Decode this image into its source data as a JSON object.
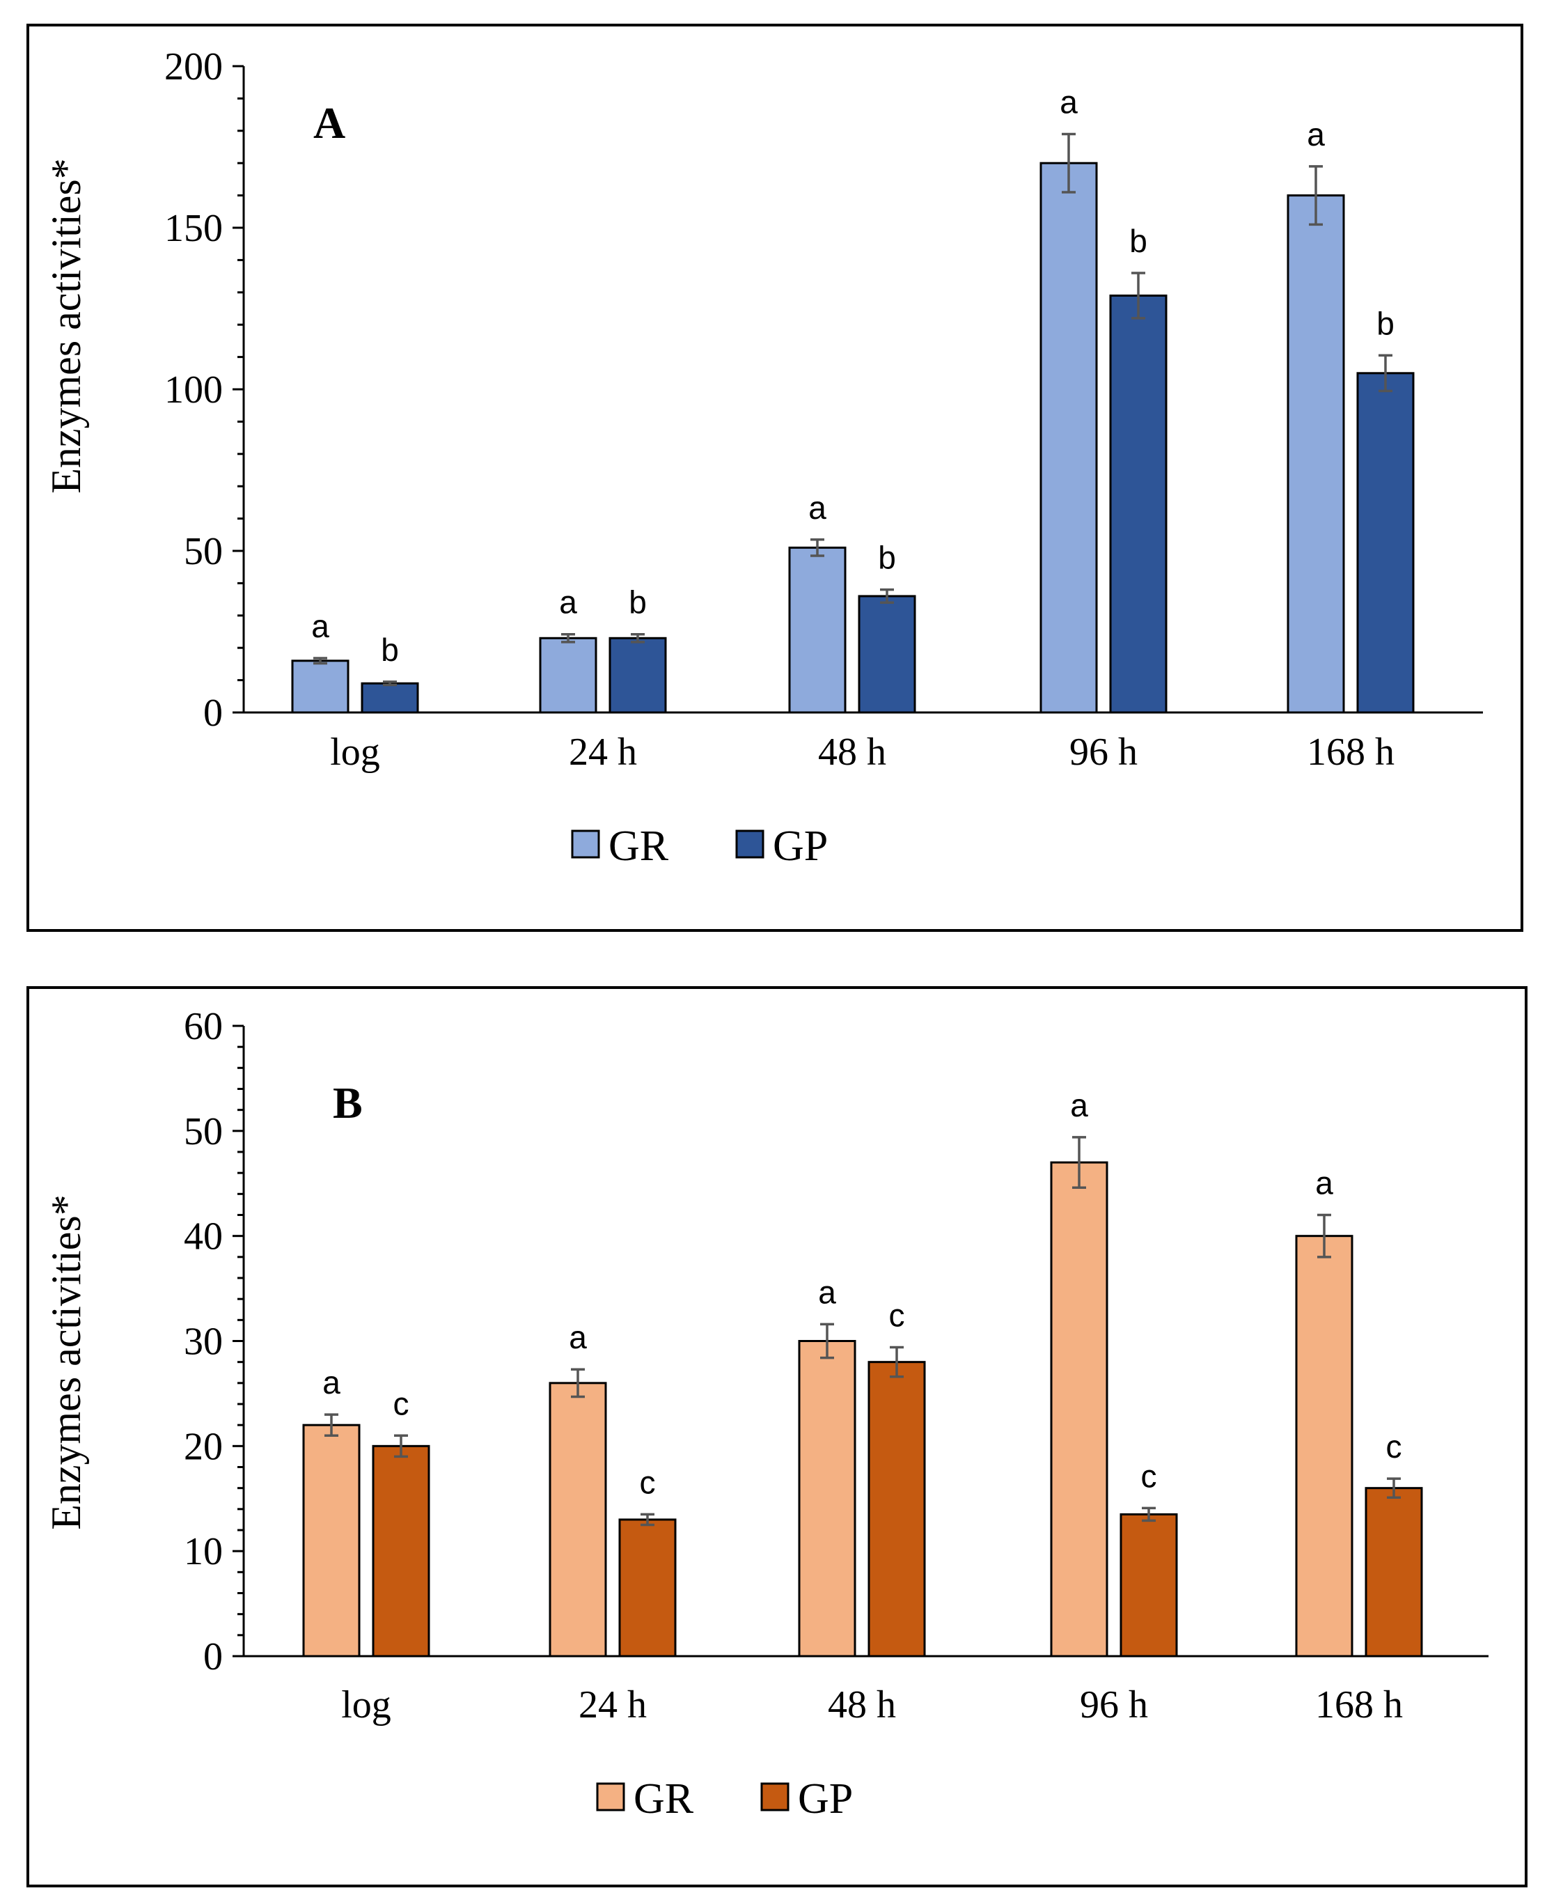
{
  "chart_data": [
    {
      "type": "bar",
      "panel_label": "A",
      "categories": [
        "log",
        "24 h",
        "48 h",
        "96 h",
        "168 h"
      ],
      "ylabel": "Enzymes activities*",
      "xlabel": "",
      "ylim": [
        0,
        200
      ],
      "yticks": [
        0,
        50,
        100,
        150,
        200
      ],
      "grid": false,
      "legend_position": "bottom-center",
      "series": [
        {
          "name": "GR",
          "color": "#8eaadc",
          "values": [
            16,
            23,
            51,
            170,
            160
          ],
          "errors": [
            0.8,
            1.2,
            2.5,
            9,
            9
          ],
          "labels": [
            "a",
            "a",
            "a",
            "a",
            "a"
          ]
        },
        {
          "name": "GP",
          "color": "#2e5597",
          "values": [
            9,
            23,
            36,
            129,
            105
          ],
          "errors": [
            0.5,
            1.2,
            2,
            7,
            5.5
          ],
          "labels": [
            "b",
            "b",
            "b",
            "b",
            "b"
          ]
        }
      ]
    },
    {
      "type": "bar",
      "panel_label": "B",
      "categories": [
        "log",
        "24 h",
        "48 h",
        "96 h",
        "168 h"
      ],
      "ylabel": "Enzymes activities*",
      "xlabel": "",
      "ylim": [
        0,
        60
      ],
      "yticks": [
        0,
        10,
        20,
        30,
        40,
        50,
        60
      ],
      "grid": false,
      "legend_position": "bottom-center",
      "series": [
        {
          "name": "GR",
          "color": "#f4b183",
          "values": [
            22,
            26,
            30,
            47,
            40
          ],
          "errors": [
            1,
            1.3,
            1.6,
            2.4,
            2
          ],
          "labels": [
            "a",
            "a",
            "a",
            "a",
            "a"
          ]
        },
        {
          "name": "GP",
          "color": "#c55a11",
          "values": [
            20,
            13,
            28,
            13.5,
            16
          ],
          "errors": [
            1,
            0.5,
            1.4,
            0.6,
            0.9
          ],
          "labels": [
            "c",
            "c",
            "c",
            "c",
            "c"
          ]
        }
      ]
    }
  ]
}
